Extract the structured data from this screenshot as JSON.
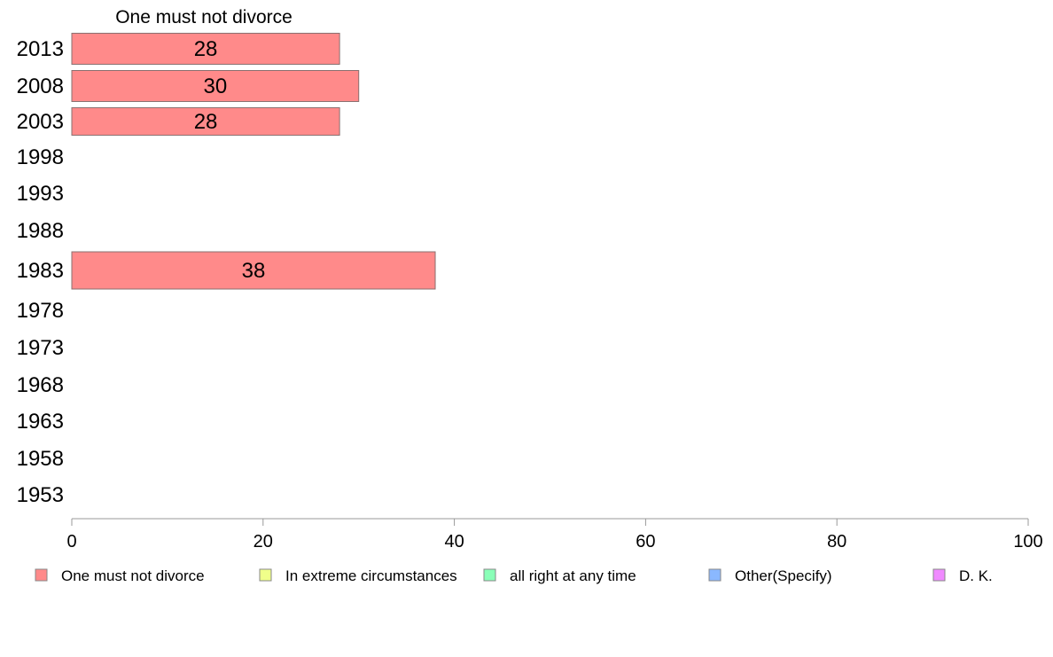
{
  "chart_data": {
    "type": "bar",
    "orientation": "horizontal",
    "series_title": "One must not divorce",
    "categories": [
      "2013",
      "2008",
      "2003",
      "1998",
      "1993",
      "1988",
      "1983",
      "1978",
      "1973",
      "1968",
      "1963",
      "1958",
      "1953"
    ],
    "series": [
      {
        "name": "One must not divorce",
        "color": "#ff8a8a",
        "values": [
          28,
          30,
          28,
          null,
          null,
          null,
          38,
          null,
          null,
          null,
          null,
          null,
          null
        ]
      }
    ],
    "xlim": [
      0,
      100
    ],
    "xticks": [
      0,
      20,
      40,
      60,
      80,
      100
    ],
    "grid": false,
    "legend": {
      "placement": "bottom",
      "items": [
        {
          "label": "One must not divorce",
          "color": "#ff8a8a"
        },
        {
          "label": "In extreme circumstances",
          "color": "#f0ff8a"
        },
        {
          "label": "all right at any time",
          "color": "#8affb8"
        },
        {
          "label": "Other(Specify)",
          "color": "#8ab8ff"
        },
        {
          "label": "D. K.",
          "color": "#f08aff"
        }
      ]
    }
  }
}
